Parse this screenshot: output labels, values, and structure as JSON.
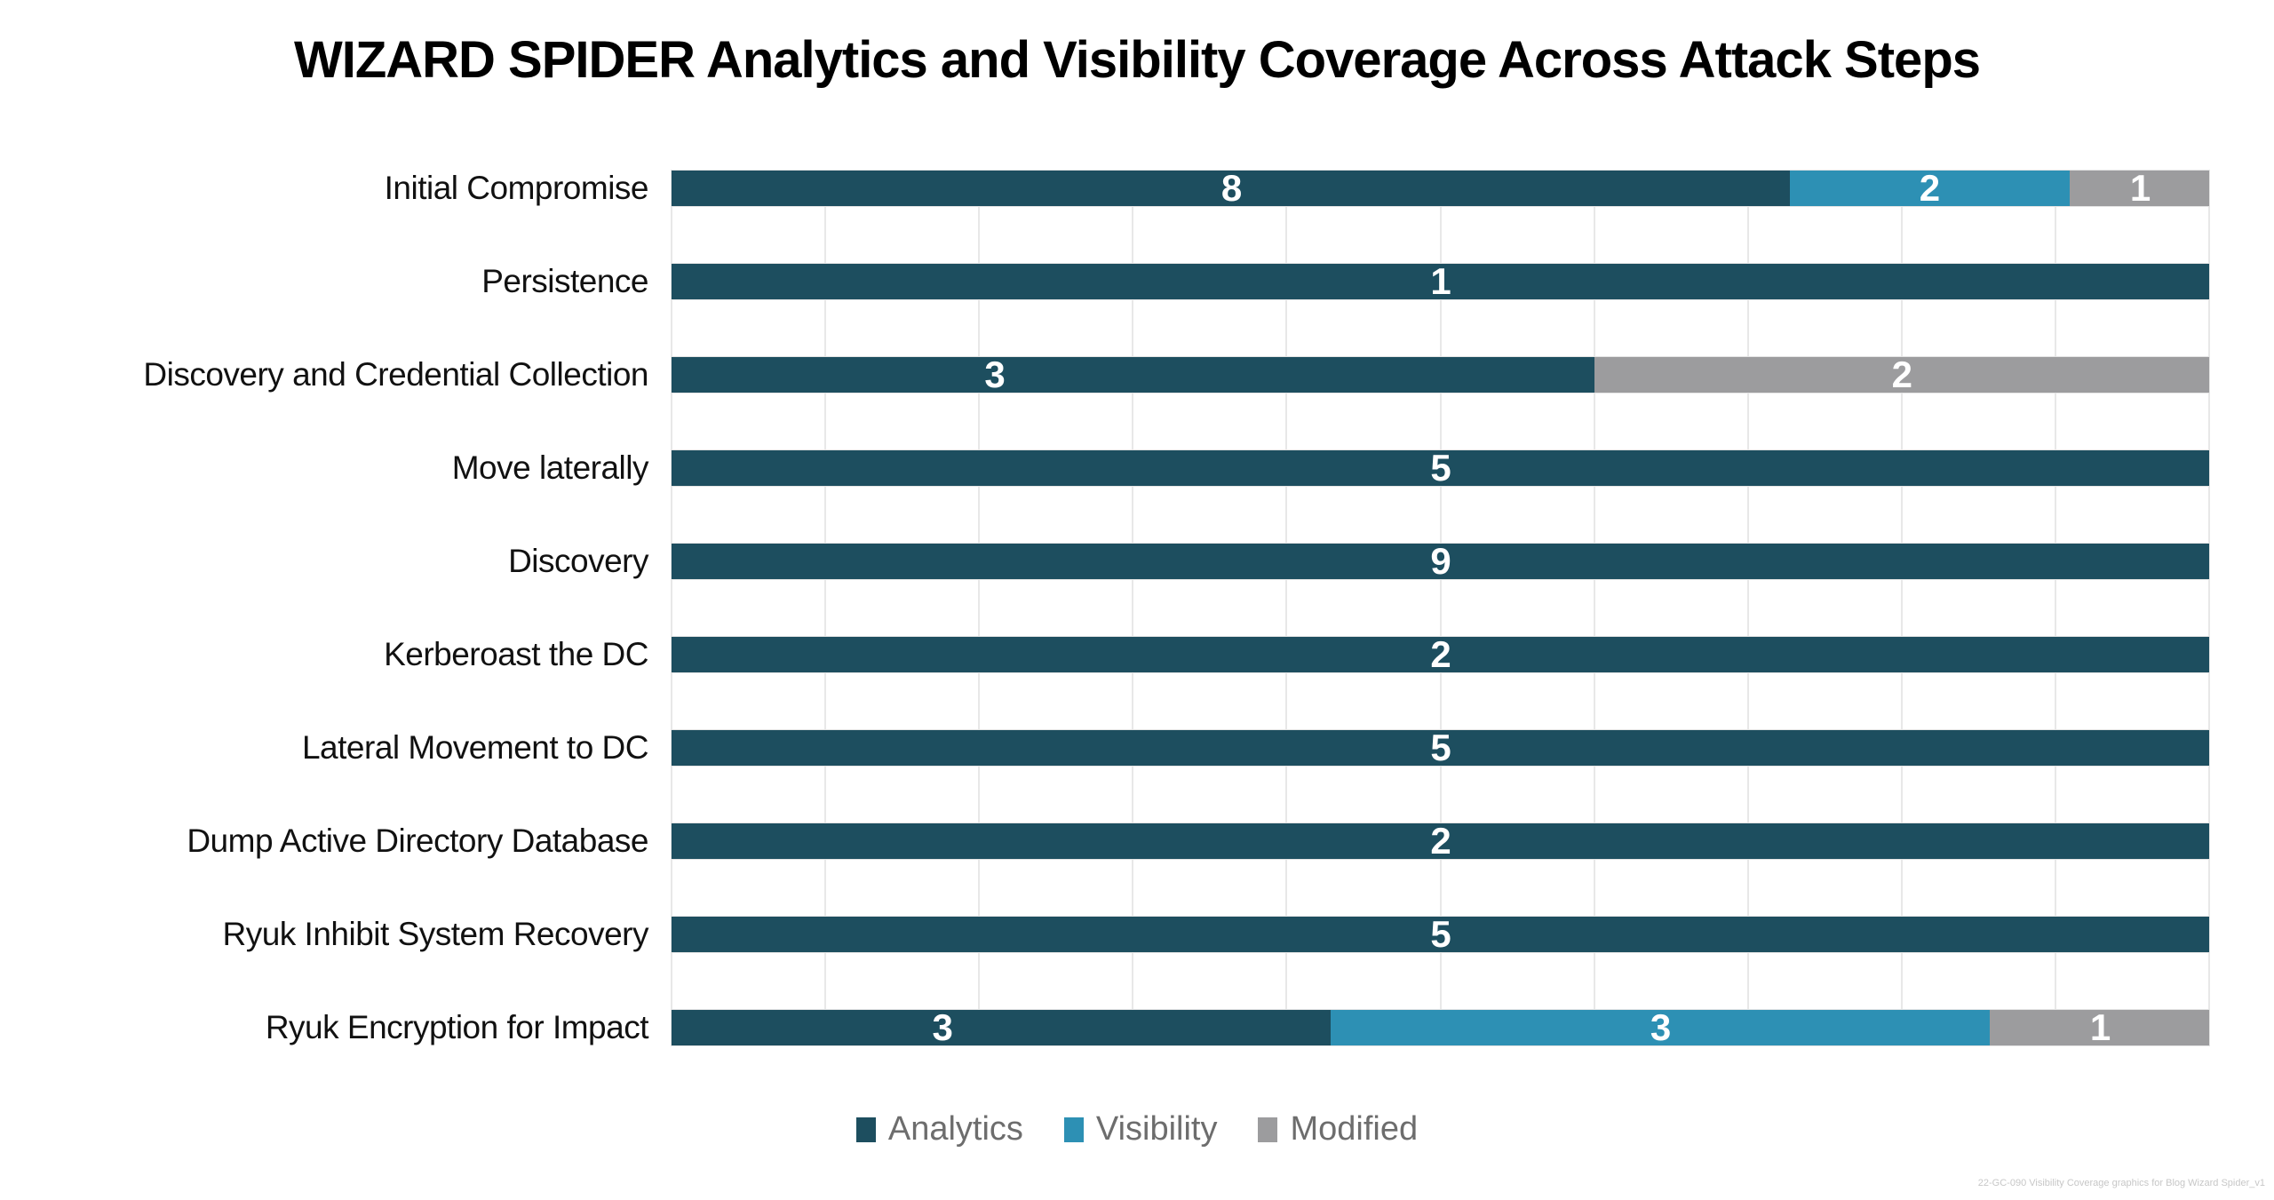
{
  "title": "WIZARD SPIDER Analytics and Visibility Coverage Across Attack Steps",
  "footnote": "22-GC-090 Visibility Coverage graphics for Blog Wizard Spider_v1",
  "colors": {
    "analytics": "#1d4e5f",
    "visibility": "#2d90b4",
    "modified": "#9c9c9e",
    "grid": "#e8e8e8",
    "title_text": "#000000",
    "category_text": "#111111",
    "value_text": "#ffffff",
    "legend_text": "#6d6d6d",
    "footnote_text": "#c7c7c7",
    "background": "#ffffff"
  },
  "legend": {
    "items": [
      {
        "key": "analytics",
        "label": "Analytics"
      },
      {
        "key": "visibility",
        "label": "Visibility"
      },
      {
        "key": "modified",
        "label": "Modified"
      }
    ]
  },
  "chart_data": {
    "type": "bar",
    "orientation": "horizontal",
    "stacking": "100%-stacked",
    "title": "WIZARD SPIDER Analytics and Visibility Coverage Across Attack Steps",
    "xlabel": "",
    "ylabel": "",
    "x_axis": {
      "visible_ticks": false,
      "gridlines": true,
      "gridline_interval_pct": 10,
      "range_pct": [
        0,
        100
      ]
    },
    "legend_position": "bottom",
    "categories": [
      "Initial Compromise",
      "Persistence",
      "Discovery and Credential Collection",
      "Move laterally",
      "Discovery",
      "Kerberoast the DC",
      "Lateral Movement to DC",
      "Dump Active Directory Database",
      "Ryuk Inhibit System Recovery",
      "Ryuk Encryption for Impact"
    ],
    "series": [
      {
        "name": "Analytics",
        "values": [
          8,
          1,
          3,
          5,
          9,
          2,
          5,
          2,
          5,
          3
        ]
      },
      {
        "name": "Visibility",
        "values": [
          2,
          0,
          0,
          0,
          0,
          0,
          0,
          0,
          0,
          3
        ]
      },
      {
        "name": "Modified",
        "values": [
          1,
          0,
          2,
          0,
          0,
          0,
          0,
          0,
          0,
          1
        ]
      }
    ],
    "rows": [
      {
        "label": "Initial Compromise",
        "segments": [
          {
            "series": "analytics",
            "value": 8,
            "width_pct": 72.73,
            "label_at_pct": 36.4
          },
          {
            "series": "visibility",
            "value": 2,
            "width_pct": 18.18,
            "label_at_pct": 81.8
          },
          {
            "series": "modified",
            "value": 1,
            "width_pct": 9.09,
            "label_at_pct": 95.5
          }
        ]
      },
      {
        "label": "Persistence",
        "segments": [
          {
            "series": "analytics",
            "value": 1,
            "width_pct": 100,
            "label_at_pct": 50
          }
        ]
      },
      {
        "label": "Discovery and Credential Collection",
        "segments": [
          {
            "series": "analytics",
            "value": 3,
            "width_pct": 60,
            "label_at_pct": 21
          },
          {
            "series": "modified",
            "value": 2,
            "width_pct": 40,
            "label_at_pct": 80
          }
        ]
      },
      {
        "label": "Move laterally",
        "segments": [
          {
            "series": "analytics",
            "value": 5,
            "width_pct": 100,
            "label_at_pct": 50
          }
        ]
      },
      {
        "label": "Discovery",
        "segments": [
          {
            "series": "analytics",
            "value": 9,
            "width_pct": 100,
            "label_at_pct": 50
          }
        ]
      },
      {
        "label": "Kerberoast the DC",
        "segments": [
          {
            "series": "analytics",
            "value": 2,
            "width_pct": 100,
            "label_at_pct": 50
          }
        ]
      },
      {
        "label": "Lateral Movement to DC",
        "segments": [
          {
            "series": "analytics",
            "value": 5,
            "width_pct": 100,
            "label_at_pct": 50
          }
        ]
      },
      {
        "label": "Dump Active Directory Database",
        "segments": [
          {
            "series": "analytics",
            "value": 2,
            "width_pct": 100,
            "label_at_pct": 50
          }
        ]
      },
      {
        "label": "Ryuk Inhibit System Recovery",
        "segments": [
          {
            "series": "analytics",
            "value": 5,
            "width_pct": 100,
            "label_at_pct": 50
          }
        ]
      },
      {
        "label": "Ryuk Encryption for Impact",
        "segments": [
          {
            "series": "analytics",
            "value": 3,
            "width_pct": 42.86,
            "label_at_pct": 17.6
          },
          {
            "series": "visibility",
            "value": 3,
            "width_pct": 42.86,
            "label_at_pct": 64.3
          },
          {
            "series": "modified",
            "value": 1,
            "width_pct": 14.29,
            "label_at_pct": 92.9
          }
        ]
      }
    ]
  }
}
